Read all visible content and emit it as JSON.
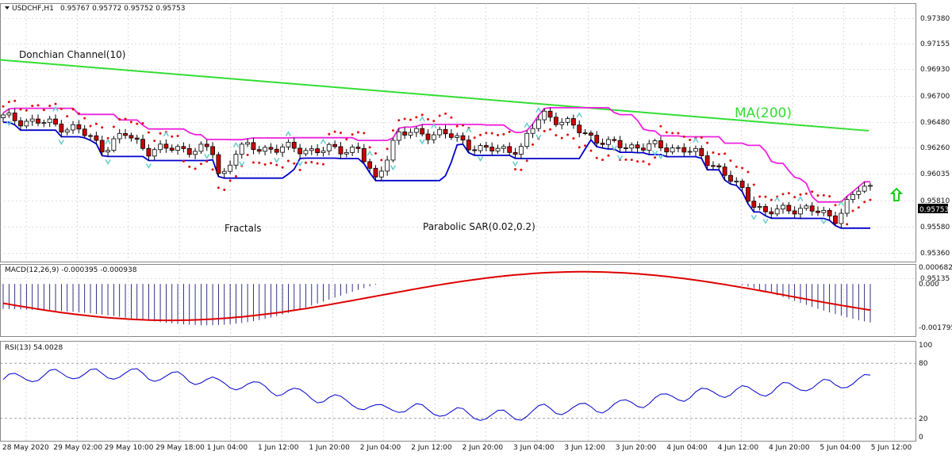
{
  "header": {
    "symbol": "USDCHF,H1",
    "ohlc": "0.95767 0.95772 0.95752 0.95753"
  },
  "colors": {
    "bull_candle": "#ffffff",
    "bear_candle": "#cc0000",
    "ma200": "#33dd33",
    "donchian_upper": "#ee22dd",
    "donchian_lower": "#0000cc",
    "sar": "#dd1111",
    "fractal": "#66cccc",
    "macd_hist": "#000066",
    "macd_signal": "#dd0000",
    "rsi": "#0000cc",
    "up_arrow": "#00cc00",
    "grid": "#c0c0c0"
  },
  "annotations": {
    "donchian": "Donchian Channel(10)",
    "ma": "MA(200)",
    "fractals": "Fractals",
    "sar": "Parabolic SAR(0.02,0.2)"
  },
  "price_axis": {
    "labels": [
      "0.97380",
      "0.97155",
      "0.96930",
      "0.96700",
      "0.96480",
      "0.96260",
      "0.96035",
      "0.95810",
      "0.95580",
      "0.95360",
      "0.95135"
    ],
    "current_price": "0.95753"
  },
  "macd_panel": {
    "header": "MACD(12,26,9) -0.000395 -0.000938",
    "labels": [
      "0.000682",
      "0.000",
      "-0.001795"
    ]
  },
  "rsi_panel": {
    "header": "RSI(13) 54.0028",
    "labels": [
      "100",
      "80",
      "20",
      "0"
    ]
  },
  "time_axis": {
    "labels": [
      "28 May 2020",
      "29 May 02:00",
      "29 May 10:00",
      "29 May 18:00",
      "1 Jun 04:00",
      "1 Jun 12:00",
      "1 Jun 20:00",
      "2 Jun 04:00",
      "2 Jun 12:00",
      "2 Jun 20:00",
      "3 Jun 04:00",
      "3 Jun 12:00",
      "3 Jun 20:00",
      "4 Jun 04:00",
      "4 Jun 12:00",
      "4 Jun 20:00",
      "5 Jun 04:00",
      "5 Jun 12:00"
    ]
  },
  "chart_data": {
    "type": "candlestick",
    "symbol": "USDCHF",
    "timeframe": "H1",
    "ylim": [
      0.9508,
      0.9745
    ],
    "macd_ylim": [
      -0.00215,
      0.00082
    ],
    "rsi_ylim": [
      0,
      100
    ],
    "rsi_levels": [
      80,
      20
    ],
    "ma200": {
      "x": [
        0,
        1095
      ],
      "y": [
        0.9693,
        0.9628
      ]
    },
    "fractals": {
      "up": [
        16,
        34,
        51,
        74,
        91,
        102,
        117,
        132,
        137,
        148,
        167,
        170,
        183,
        220,
        246,
        253,
        265
      ],
      "down": [
        2,
        18,
        33,
        46,
        65,
        76,
        86,
        95,
        123,
        133,
        151,
        163,
        169,
        193,
        196,
        207,
        209,
        239,
        241,
        260
      ]
    },
    "macd_hist_range": [
      -0.00175,
      5e-05
    ]
  }
}
